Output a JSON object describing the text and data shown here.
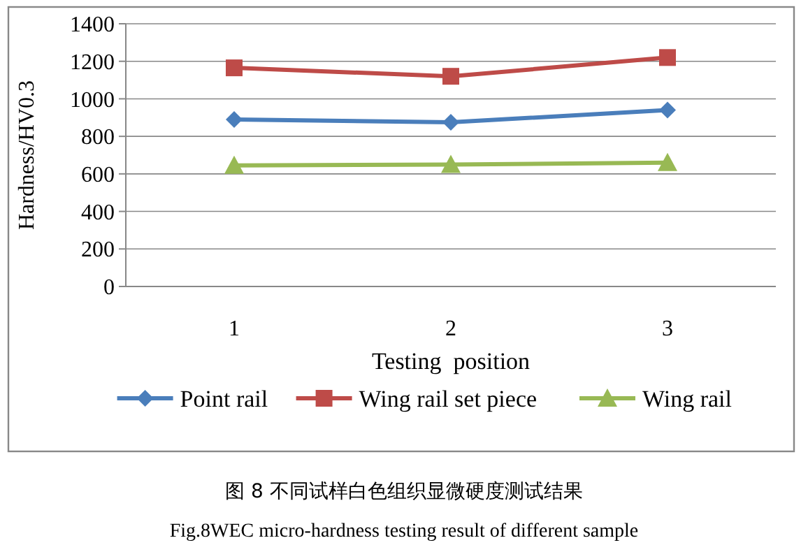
{
  "chart_data": {
    "type": "line",
    "xlabel": "Testing  position",
    "ylabel": "Hardness/HV0.3",
    "categories": [
      "1",
      "2",
      "3"
    ],
    "series": [
      {
        "name": "Point rail",
        "color": "#4a7ebb",
        "values": [
          890,
          875,
          940
        ],
        "marker": "diamond"
      },
      {
        "name": "Wing rail set piece",
        "color": "#be4b48",
        "values": [
          1165,
          1120,
          1220
        ],
        "marker": "square"
      },
      {
        "name": "Wing rail",
        "color": "#98b954",
        "values": [
          645,
          650,
          660
        ],
        "marker": "triangle"
      }
    ],
    "ylim": [
      0,
      1400
    ],
    "yticks": [
      0,
      200,
      400,
      600,
      800,
      1000,
      1200,
      1400
    ],
    "grid": "y",
    "legend": "bottom",
    "annotations": [
      "图 8 不同试样白色组织显微硬度测试结果",
      "Fig.8WEC micro-hardness testing result of different sample"
    ]
  }
}
